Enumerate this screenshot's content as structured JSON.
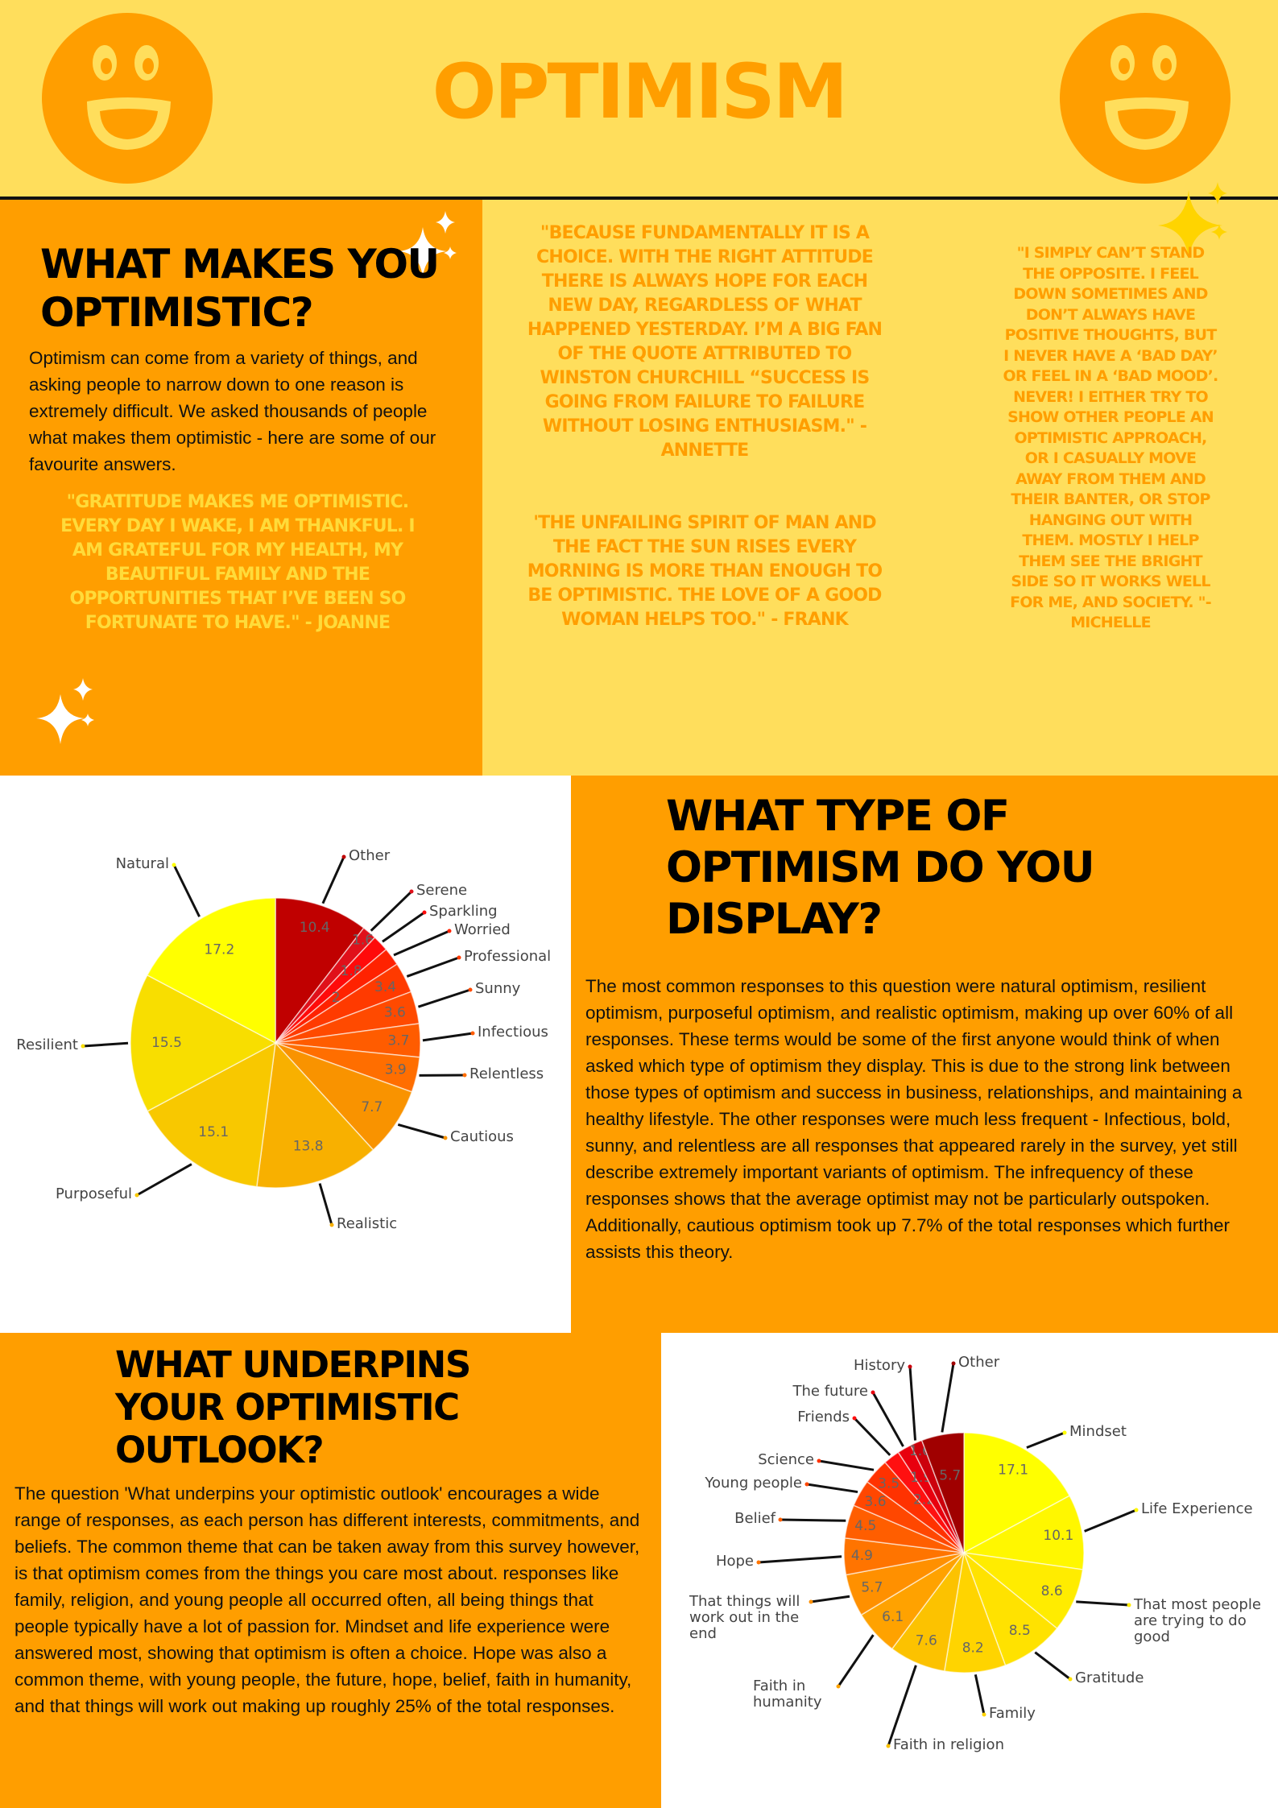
{
  "header": {
    "title": "OPTIMISM",
    "colors": {
      "background": "#FFDE5C",
      "accent": "#FF9E00"
    },
    "left_icon": "excited-face-icon",
    "right_icon": "excited-face-icon"
  },
  "section1": {
    "heading": "WHAT MAKES YOU OPTIMISTIC?",
    "intro": "Optimism can come from a variety of things, and asking people to narrow down to one reason is extremely difficult. We asked thousands of people what makes them optimistic - here are some of our favourite answers.",
    "quotes": [
      {
        "text": "\"Gratitude makes me optimistic. Every day I wake, I am thankful. I am grateful for my health, my beautiful family and the opportunities that I’ve been so fortunate to have.\" - Joanne"
      },
      {
        "text": "\"Because fundamentally it is a choice. With the right attitude there is always hope for each new day, regardless of what happened yesterday. I’m a big fan of the quote attributed to Winston Churchill “Success is going from failure to failure without losing enthusiasm.\" - Annette"
      },
      {
        "text": "'The unfailing spirit of man and the fact the sun rises every morning is more than enough to be optimistic. The love of a good woman helps too.\" - Frank"
      },
      {
        "text": "\"I simply can’t stand the opposite. I feel down sometimes and don’t always have positive thoughts, but I never have a ‘bad day’ or feel in a ‘bad mood’. Never! I either try to show other people an optimistic approach, or I casually move away from them and their banter, or stop hanging out with them. Mostly I help them see the bright side so it works well for me, and society. \"- Michelle"
      }
    ]
  },
  "section2": {
    "heading": "WHAT TYPE OF OPTIMISM DO YOU DISPLAY?",
    "body": "The most common responses to this question were natural optimism, resilient optimism, purposeful optimism, and realistic optimism, making up over 60% of all responses. These terms would be some of the first anyone would think of when asked which type of optimism they display. This is due to the strong link between those types of optimism and success in business, relationships, and maintaining a healthy lifestyle. The other responses were much less frequent - Infectious, bold, sunny, and relentless are all responses that appeared rarely in the survey, yet still describe extremely important variants of optimism. The infrequency of these responses shows that the average optimist may not be particularly outspoken. Additionally, cautious optimism took up 7.7% of the total responses which further assists this theory."
  },
  "section3": {
    "heading": "WHAT UNDERPINS YOUR OPTIMISTIC OUTLOOK?",
    "body": "The question 'What underpins your optimistic outlook' encourages a wide range of responses, as each person has different interests, commitments, and beliefs. The common theme that can be taken away from this survey however, is that optimism comes from the things you care most about. responses like family, religion, and young people all occurred often, all being things that people typically have a lot of passion for. Mindset and life experience were answered most, showing that optimism is often a choice. Hope was also a common theme, with young people, the future, hope, belief, faith in humanity, and that things will work out making up roughly 25% of the total responses."
  },
  "chart_data": [
    {
      "type": "pie",
      "title": "",
      "direction": "clockwise from top",
      "labels": [
        "Other",
        "Serene",
        "Sparkling",
        "Worried",
        "Professional",
        "Sunny",
        "Infectious",
        "Relentless",
        "Cautious",
        "Realistic",
        "Purposeful",
        "Resilient",
        "Natural"
      ],
      "values": [
        10.4,
        1.6,
        1.8,
        2,
        3.4,
        3.6,
        3.7,
        3.9,
        7.7,
        13.8,
        15.1,
        15.5,
        17.2
      ],
      "colors": [
        "#C00000",
        "#E0101A",
        "#FF0A0A",
        "#FF2200",
        "#FF3A00",
        "#FF4A00",
        "#FF5C00",
        "#FF6E00",
        "#F99300",
        "#F8B000",
        "#F8C800",
        "#F8DE00",
        "#FFFF00"
      ]
    },
    {
      "type": "pie",
      "title": "",
      "direction": "clockwise from top",
      "labels": [
        "Mindset",
        "Life Experience",
        "That most people are trying to do good",
        "Gratitude",
        "Family",
        "Faith in religion",
        "Faith in humanity",
        "That things will work out in the end",
        "Hope",
        "Belief",
        "Young people",
        "Science",
        "Friends",
        "The future",
        "History",
        "Other"
      ],
      "values": [
        17.1,
        10.1,
        8.6,
        8.5,
        8.2,
        7.6,
        6.1,
        5.7,
        4.9,
        4.5,
        3.6,
        3.5,
        2.2,
        1.9,
        1.6,
        5.7
      ],
      "colors": [
        "#FFFF00",
        "#FFF700",
        "#FFEC00",
        "#FFE200",
        "#FFD400",
        "#FCC200",
        "#FFA200",
        "#FF9000",
        "#FF7400",
        "#FF5E00",
        "#FF4700",
        "#FF3200",
        "#FF1010",
        "#E8000E",
        "#CC000C",
        "#A00000"
      ]
    }
  ]
}
